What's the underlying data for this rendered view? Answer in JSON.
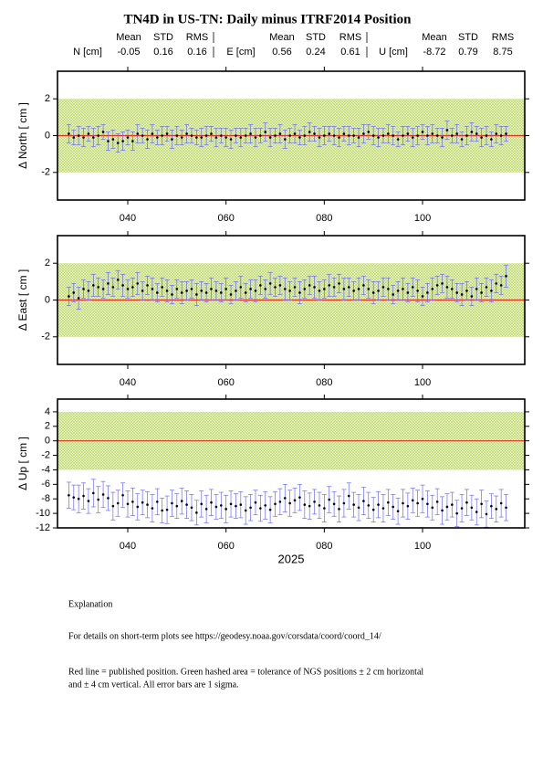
{
  "title": "TN4D in US-TN: Daily minus ITRF2014 Position",
  "stats": {
    "headers": [
      "Mean",
      "STD",
      "RMS"
    ],
    "rows": [
      {
        "label": "N [cm]",
        "values": [
          -0.05,
          0.16,
          0.16
        ]
      },
      {
        "label": "E [cm]",
        "values": [
          0.56,
          0.24,
          0.61
        ]
      },
      {
        "label": "U [cm]",
        "values": [
          -8.72,
          0.79,
          8.75
        ]
      }
    ]
  },
  "chart_data": [
    {
      "type": "errorbar",
      "ylabel": "Δ North  [ cm ]",
      "x": [
        28,
        29,
        30,
        31,
        32,
        33,
        34,
        35,
        36,
        37,
        38,
        39,
        40,
        41,
        42,
        43,
        44,
        45,
        46,
        47,
        48,
        49,
        50,
        51,
        52,
        53,
        54,
        55,
        56,
        57,
        58,
        59,
        60,
        61,
        62,
        63,
        64,
        65,
        66,
        67,
        68,
        69,
        70,
        71,
        72,
        73,
        74,
        75,
        76,
        77,
        78,
        79,
        80,
        81,
        82,
        83,
        84,
        85,
        86,
        87,
        88,
        89,
        90,
        91,
        92,
        93,
        94,
        95,
        96,
        97,
        98,
        99,
        100,
        101,
        102,
        103,
        104,
        105,
        106,
        107,
        108,
        109,
        110,
        111,
        112,
        113,
        114,
        115,
        116,
        117
      ],
      "values": [
        0.1,
        -0.1,
        0.0,
        -0.1,
        0.1,
        -0.1,
        0.0,
        0.2,
        -0.3,
        -0.2,
        -0.4,
        -0.3,
        -0.1,
        -0.3,
        0.1,
        0.0,
        -0.2,
        0.1,
        -0.1,
        0.0,
        0.1,
        -0.2,
        0.0,
        -0.1,
        0.1,
        0.0,
        -0.1,
        -0.1,
        0.0,
        0.1,
        -0.1,
        0.0,
        -0.1,
        -0.2,
        0.0,
        -0.1,
        0.0,
        0.1,
        -0.1,
        0.0,
        0.2,
        -0.1,
        0.0,
        0.1,
        -0.2,
        0.0,
        0.1,
        -0.1,
        0.0,
        0.2,
        0.1,
        -0.1,
        0.0,
        0.1,
        0.0,
        -0.1,
        0.1,
        0.0,
        0.0,
        -0.1,
        0.1,
        0.2,
        0.0,
        -0.1,
        0.0,
        0.1,
        0.0,
        -0.2,
        0.0,
        0.1,
        -0.1,
        0.0,
        0.2,
        0.0,
        0.1,
        0.0,
        -0.1,
        0.3,
        0.0,
        0.1,
        -0.2,
        0.0,
        0.2,
        0.1,
        -0.1,
        0.0,
        -0.2,
        0.1,
        0.0,
        0.1
      ],
      "errors": [
        0.5,
        0.4,
        0.5,
        0.5,
        0.4,
        0.5,
        0.5,
        0.4,
        0.5,
        0.5,
        0.5,
        0.5,
        0.4,
        0.5,
        0.5,
        0.4,
        0.5,
        0.5,
        0.4,
        0.5,
        0.4,
        0.5,
        0.5,
        0.4,
        0.5,
        0.4,
        0.4,
        0.5,
        0.5,
        0.4,
        0.5,
        0.4,
        0.5,
        0.5,
        0.4,
        0.5,
        0.4,
        0.5,
        0.5,
        0.4,
        0.5,
        0.5,
        0.4,
        0.5,
        0.5,
        0.4,
        0.5,
        0.4,
        0.5,
        0.5,
        0.4,
        0.5,
        0.5,
        0.4,
        0.5,
        0.5,
        0.4,
        0.5,
        0.4,
        0.5,
        0.5,
        0.4,
        0.5,
        0.5,
        0.4,
        0.5,
        0.5,
        0.4,
        0.5,
        0.4,
        0.5,
        0.5,
        0.4,
        0.5,
        0.5,
        0.4,
        0.5,
        0.5,
        0.4,
        0.5,
        0.4,
        0.5,
        0.5,
        0.4,
        0.5,
        0.5,
        0.4,
        0.5,
        0.5,
        0.4
      ],
      "xlim": [
        25.7,
        120.8
      ],
      "xticks": [
        {
          "value": 40,
          "label": "040"
        },
        {
          "value": 60,
          "label": "060"
        },
        {
          "value": 80,
          "label": "080"
        },
        {
          "value": 100,
          "label": "100"
        }
      ],
      "ylim": [
        -3.5,
        3.5
      ],
      "yticks": [
        -2,
        0,
        2
      ],
      "band": [
        -2,
        2
      ],
      "reference": 0
    },
    {
      "type": "errorbar",
      "ylabel": "Δ East  [ cm ]",
      "x": [
        28,
        29,
        30,
        31,
        32,
        33,
        34,
        35,
        36,
        37,
        38,
        39,
        40,
        41,
        42,
        43,
        44,
        45,
        46,
        47,
        48,
        49,
        50,
        51,
        52,
        53,
        54,
        55,
        56,
        57,
        58,
        59,
        60,
        61,
        62,
        63,
        64,
        65,
        66,
        67,
        68,
        69,
        70,
        71,
        72,
        73,
        74,
        75,
        76,
        77,
        78,
        79,
        80,
        81,
        82,
        83,
        84,
        85,
        86,
        87,
        88,
        89,
        90,
        91,
        92,
        93,
        94,
        95,
        96,
        97,
        98,
        99,
        100,
        101,
        102,
        103,
        104,
        105,
        106,
        107,
        108,
        109,
        110,
        111,
        112,
        113,
        114,
        115,
        116,
        117
      ],
      "values": [
        0.2,
        0.4,
        0.1,
        0.6,
        0.5,
        0.8,
        0.7,
        0.6,
        0.9,
        0.7,
        1.1,
        0.8,
        0.6,
        0.7,
        0.9,
        0.5,
        0.8,
        0.6,
        0.4,
        0.7,
        0.5,
        0.3,
        0.6,
        0.4,
        0.5,
        0.6,
        0.3,
        0.5,
        0.4,
        0.6,
        0.5,
        0.4,
        0.6,
        0.3,
        0.5,
        0.7,
        0.4,
        0.6,
        0.5,
        0.8,
        0.6,
        0.9,
        0.7,
        0.8,
        0.6,
        0.5,
        0.7,
        0.4,
        0.6,
        0.8,
        0.7,
        0.5,
        0.6,
        0.8,
        0.7,
        0.9,
        0.6,
        0.7,
        0.5,
        0.6,
        0.8,
        0.6,
        0.4,
        0.5,
        0.7,
        0.6,
        0.3,
        0.5,
        0.6,
        0.4,
        0.7,
        0.5,
        0.2,
        0.4,
        0.6,
        0.8,
        0.9,
        0.7,
        0.6,
        0.4,
        0.3,
        0.5,
        0.2,
        0.6,
        0.4,
        0.7,
        0.5,
        0.9,
        0.8,
        1.3
      ],
      "errors": [
        0.5,
        0.5,
        0.6,
        0.5,
        0.5,
        0.6,
        0.5,
        0.5,
        0.6,
        0.5,
        0.5,
        0.6,
        0.5,
        0.5,
        0.6,
        0.5,
        0.5,
        0.6,
        0.5,
        0.5,
        0.6,
        0.5,
        0.5,
        0.6,
        0.5,
        0.5,
        0.6,
        0.5,
        0.5,
        0.6,
        0.5,
        0.5,
        0.6,
        0.5,
        0.5,
        0.6,
        0.5,
        0.5,
        0.6,
        0.5,
        0.5,
        0.6,
        0.5,
        0.5,
        0.6,
        0.5,
        0.5,
        0.6,
        0.5,
        0.5,
        0.6,
        0.5,
        0.5,
        0.6,
        0.5,
        0.5,
        0.6,
        0.5,
        0.5,
        0.6,
        0.5,
        0.5,
        0.6,
        0.5,
        0.5,
        0.6,
        0.5,
        0.5,
        0.6,
        0.5,
        0.5,
        0.6,
        0.5,
        0.5,
        0.6,
        0.5,
        0.5,
        0.6,
        0.5,
        0.5,
        0.6,
        0.5,
        0.5,
        0.6,
        0.5,
        0.5,
        0.6,
        0.5,
        0.5,
        0.6
      ],
      "xlim": [
        25.7,
        120.8
      ],
      "xticks": [
        {
          "value": 40,
          "label": "040"
        },
        {
          "value": 60,
          "label": "060"
        },
        {
          "value": 80,
          "label": "080"
        },
        {
          "value": 100,
          "label": "100"
        }
      ],
      "ylim": [
        -3.5,
        3.5
      ],
      "yticks": [
        -2,
        0,
        2
      ],
      "band": [
        -2,
        2
      ],
      "reference": 0
    },
    {
      "type": "errorbar",
      "ylabel": "Δ Up  [ cm ]",
      "xlabel": "2025",
      "x": [
        28,
        29,
        30,
        31,
        32,
        33,
        34,
        35,
        36,
        37,
        38,
        39,
        40,
        41,
        42,
        43,
        44,
        45,
        46,
        47,
        48,
        49,
        50,
        51,
        52,
        53,
        54,
        55,
        56,
        57,
        58,
        59,
        60,
        61,
        62,
        63,
        64,
        65,
        66,
        67,
        68,
        69,
        70,
        71,
        72,
        73,
        74,
        75,
        76,
        77,
        78,
        79,
        80,
        81,
        82,
        83,
        84,
        85,
        86,
        87,
        88,
        89,
        90,
        91,
        92,
        93,
        94,
        95,
        96,
        97,
        98,
        99,
        100,
        101,
        102,
        103,
        104,
        105,
        106,
        107,
        108,
        109,
        110,
        111,
        112,
        113,
        114,
        115,
        116,
        117
      ],
      "values": [
        -7.5,
        -7.8,
        -8.0,
        -7.6,
        -8.3,
        -7.2,
        -8.1,
        -7.4,
        -7.9,
        -9.0,
        -8.6,
        -7.5,
        -8.7,
        -8.4,
        -9.1,
        -8.5,
        -8.8,
        -9.3,
        -8.4,
        -9.6,
        -9.5,
        -8.6,
        -9.0,
        -8.3,
        -8.8,
        -9.2,
        -9.9,
        -8.7,
        -9.4,
        -8.5,
        -9.1,
        -8.9,
        -9.4,
        -8.7,
        -9.0,
        -8.8,
        -9.6,
        -9.2,
        -8.5,
        -9.3,
        -8.9,
        -9.5,
        -8.7,
        -8.4,
        -7.9,
        -8.6,
        -8.2,
        -7.8,
        -8.8,
        -9.0,
        -8.4,
        -8.9,
        -9.3,
        -8.1,
        -8.7,
        -9.4,
        -8.6,
        -7.6,
        -8.8,
        -9.2,
        -8.3,
        -8.9,
        -9.5,
        -8.8,
        -9.3,
        -8.5,
        -9.1,
        -9.7,
        -8.6,
        -9.0,
        -8.2,
        -8.6,
        -8.0,
        -8.7,
        -9.2,
        -8.4,
        -9.6,
        -9.1,
        -8.8,
        -10.0,
        -9.3,
        -8.5,
        -9.2,
        -9.8,
        -8.7,
        -10.1,
        -9.0,
        -9.4,
        -8.6,
        -9.2
      ],
      "errors": [
        1.8,
        1.7,
        1.9,
        1.8,
        1.7,
        1.9,
        1.8,
        1.8,
        1.7,
        1.9,
        1.8,
        1.7,
        1.8,
        1.9,
        1.8,
        1.7,
        1.8,
        1.9,
        1.8,
        1.7,
        1.9,
        1.8,
        1.7,
        1.8,
        1.9,
        1.8,
        1.7,
        1.8,
        1.9,
        1.8,
        1.7,
        1.8,
        1.9,
        1.8,
        1.7,
        1.8,
        1.9,
        1.8,
        1.7,
        1.8,
        1.9,
        1.8,
        1.7,
        1.8,
        1.9,
        1.8,
        1.7,
        1.8,
        1.9,
        1.8,
        1.7,
        1.8,
        1.9,
        1.8,
        1.7,
        1.8,
        1.9,
        1.8,
        1.7,
        1.8,
        1.9,
        1.8,
        1.7,
        1.8,
        1.9,
        1.8,
        1.7,
        1.8,
        1.9,
        1.8,
        1.7,
        1.8,
        1.9,
        1.8,
        1.7,
        1.8,
        1.9,
        1.8,
        1.7,
        1.8,
        1.9,
        1.8,
        1.7,
        1.8,
        1.9,
        1.8,
        1.7,
        1.8,
        1.9,
        1.8
      ],
      "xlim": [
        25.7,
        120.8
      ],
      "xticks": [
        {
          "value": 40,
          "label": "040"
        },
        {
          "value": 60,
          "label": "060"
        },
        {
          "value": 80,
          "label": "080"
        },
        {
          "value": 100,
          "label": "100"
        }
      ],
      "ylim": [
        -12,
        5.75
      ],
      "yticks": [
        -12,
        -10,
        -8,
        -6,
        -4,
        -2,
        0,
        2,
        4
      ],
      "band": [
        -4,
        4
      ],
      "reference": 0
    }
  ],
  "notes": {
    "heading": "Explanation",
    "lines": [
      "For details on short-term plots see https://geodesy.noaa.gov/corsdata/coord/coord_14/",
      "Red line = published position.  Green hashed area = tolerance of NGS positions ± 2 cm horizontal",
      "and ± 4 cm vertical.  All error bars are 1 sigma."
    ]
  }
}
